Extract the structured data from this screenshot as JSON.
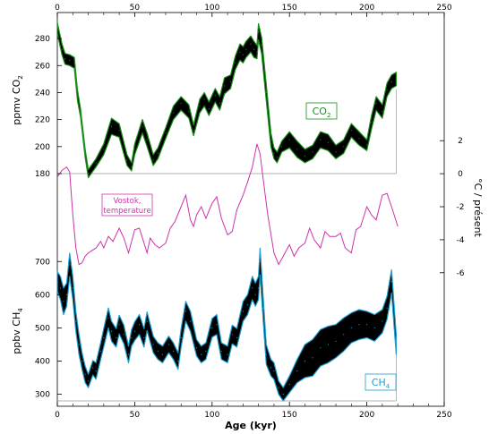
{
  "chart_data": [
    {
      "type": "area",
      "label": "CO2",
      "label_text": "CO",
      "label_sub": "2",
      "ylabel": "ppmv  CO",
      "ylabel_sub": "2",
      "ylim": [
        180,
        290
      ],
      "yticks": [
        180,
        200,
        220,
        240,
        260,
        280
      ],
      "color": "#1a8f1a",
      "fill": "#000000",
      "x": [
        0,
        3,
        5,
        8,
        11,
        13,
        15,
        18,
        20,
        25,
        30,
        35,
        40,
        45,
        48,
        50,
        55,
        58,
        62,
        65,
        70,
        75,
        80,
        85,
        88,
        92,
        95,
        98,
        102,
        105,
        108,
        112,
        115,
        118,
        120,
        122,
        125,
        127,
        129,
        130,
        132,
        135,
        138,
        140,
        142,
        145,
        150,
        155,
        160,
        165,
        170,
        175,
        180,
        185,
        190,
        195,
        200,
        203,
        206,
        210,
        213,
        216,
        219
      ],
      "y": [
        288,
        272,
        265,
        264,
        262,
        238,
        225,
        195,
        180,
        188,
        198,
        215,
        212,
        190,
        185,
        198,
        215,
        205,
        190,
        195,
        210,
        225,
        232,
        226,
        212,
        230,
        235,
        228,
        238,
        232,
        245,
        248,
        262,
        270,
        268,
        272,
        276,
        272,
        270,
        285,
        275,
        240,
        205,
        195,
        192,
        200,
        205,
        198,
        193,
        196,
        205,
        203,
        196,
        200,
        212,
        206,
        201,
        218,
        232,
        226,
        242,
        248,
        250
      ],
      "spread": [
        4,
        4,
        4,
        4,
        4,
        4,
        3,
        3,
        3,
        3,
        4,
        6,
        5,
        4,
        3,
        4,
        5,
        5,
        4,
        4,
        4,
        5,
        5,
        5,
        4,
        5,
        5,
        5,
        5,
        5,
        6,
        5,
        5,
        6,
        6,
        6,
        6,
        6,
        5,
        6,
        6,
        6,
        5,
        4,
        4,
        4,
        6,
        6,
        5,
        5,
        6,
        6,
        5,
        5,
        5,
        5,
        4,
        5,
        5,
        5,
        5,
        5,
        5
      ]
    },
    {
      "type": "line",
      "label": "Vostok,\ntemperature",
      "label_lines": [
        "Vostok,",
        "temperature"
      ],
      "ylabel": "°C / présent",
      "ylim": [
        -6.5,
        2.5
      ],
      "yticks": [
        2,
        0,
        -2,
        -4,
        -6
      ],
      "color": "#cc33aa",
      "x": [
        0,
        3,
        6,
        8,
        10,
        12,
        14,
        16,
        18,
        20,
        25,
        28,
        30,
        33,
        36,
        40,
        43,
        46,
        50,
        53,
        56,
        58,
        60,
        63,
        66,
        70,
        73,
        76,
        80,
        83,
        86,
        88,
        90,
        93,
        96,
        100,
        103,
        106,
        110,
        113,
        116,
        120,
        123,
        126,
        129,
        131,
        133,
        136,
        140,
        143,
        146,
        150,
        153,
        156,
        160,
        163,
        166,
        170,
        173,
        176,
        180,
        183,
        186,
        190,
        193,
        196,
        200,
        203,
        206,
        210,
        213,
        216,
        220
      ],
      "y": [
        -0.2,
        0.2,
        0.4,
        0.1,
        -2.5,
        -4.5,
        -5.5,
        -5.4,
        -5.0,
        -4.8,
        -4.5,
        -4.1,
        -4.5,
        -3.8,
        -4.1,
        -3.3,
        -3.9,
        -4.8,
        -3.4,
        -3.3,
        -4.2,
        -4.8,
        -3.9,
        -4.3,
        -4.5,
        -4.2,
        -3.3,
        -2.9,
        -2.0,
        -1.3,
        -2.8,
        -3.2,
        -2.5,
        -2.0,
        -2.7,
        -1.8,
        -1.4,
        -2.7,
        -3.7,
        -3.5,
        -2.2,
        -1.3,
        -0.5,
        0.4,
        1.8,
        1.2,
        -0.3,
        -2.5,
        -4.8,
        -5.5,
        -5.0,
        -4.3,
        -5.0,
        -4.5,
        -4.2,
        -3.3,
        -4.0,
        -4.5,
        -3.5,
        -3.8,
        -3.8,
        -3.6,
        -4.5,
        -4.8,
        -3.4,
        -3.2,
        -2.0,
        -2.5,
        -2.8,
        -1.3,
        -1.2,
        -2.0,
        -3.2
      ]
    },
    {
      "type": "area",
      "label": "CH",
      "label_text": "CH",
      "label_sub": "4",
      "ylabel": "ppbv  CH",
      "ylabel_sub": "4",
      "ylim": [
        280,
        760
      ],
      "yticks": [
        300,
        400,
        500,
        600,
        700
      ],
      "color": "#1a9fd0",
      "fill": "#000000",
      "x": [
        0,
        2,
        4,
        6,
        8,
        10,
        12,
        14,
        16,
        18,
        20,
        23,
        25,
        28,
        30,
        33,
        35,
        38,
        40,
        43,
        46,
        48,
        50,
        53,
        56,
        58,
        62,
        65,
        68,
        72,
        75,
        78,
        80,
        83,
        86,
        90,
        93,
        96,
        100,
        103,
        106,
        110,
        113,
        116,
        120,
        123,
        126,
        128,
        130,
        131,
        133,
        135,
        138,
        140,
        143,
        146,
        150,
        155,
        160,
        165,
        170,
        175,
        180,
        185,
        190,
        195,
        200,
        205,
        210,
        213,
        216,
        219
      ],
      "y": [
        640,
        620,
        580,
        600,
        690,
        620,
        520,
        450,
        400,
        360,
        340,
        380,
        370,
        430,
        470,
        530,
        490,
        470,
        510,
        480,
        420,
        470,
        490,
        510,
        470,
        520,
        450,
        430,
        420,
        450,
        430,
        400,
        470,
        550,
        520,
        440,
        420,
        430,
        500,
        510,
        430,
        420,
        480,
        470,
        550,
        570,
        620,
        600,
        620,
        700,
        560,
        420,
        380,
        370,
        320,
        300,
        330,
        370,
        400,
        410,
        440,
        450,
        460,
        480,
        500,
        510,
        510,
        500,
        520,
        560,
        640,
        450
      ],
      "spread": [
        30,
        35,
        40,
        35,
        35,
        35,
        30,
        30,
        25,
        25,
        20,
        22,
        25,
        25,
        28,
        30,
        30,
        28,
        28,
        28,
        25,
        25,
        28,
        30,
        28,
        28,
        25,
        25,
        25,
        25,
        25,
        25,
        28,
        30,
        30,
        25,
        25,
        25,
        28,
        30,
        25,
        25,
        28,
        28,
        30,
        30,
        35,
        35,
        35,
        40,
        35,
        30,
        25,
        25,
        20,
        20,
        25,
        35,
        50,
        55,
        55,
        55,
        50,
        50,
        45,
        45,
        40,
        40,
        35,
        35,
        35,
        30
      ]
    }
  ],
  "axes": {
    "xlabel": "Age  (kyr)",
    "xlim": [
      0,
      250
    ],
    "xticks": [
      0,
      50,
      100,
      150,
      200,
      250
    ]
  },
  "colors": {
    "co2_line": "#1a8f1a",
    "temp_line": "#cc33aa",
    "ch4_line": "#1a9fd0",
    "axis": "#000000"
  }
}
